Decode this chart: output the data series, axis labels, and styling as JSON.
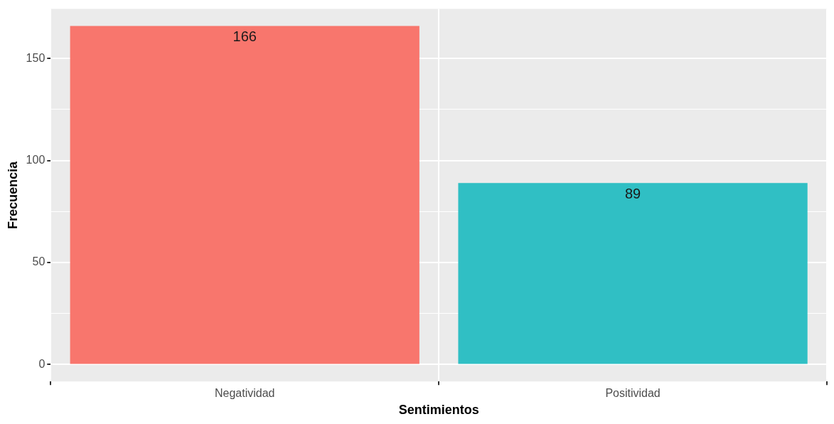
{
  "chart_data": {
    "type": "bar",
    "xlabel": "Sentimientos",
    "ylabel": "Frecuencia",
    "categories": [
      "Negatividad",
      "Positividad"
    ],
    "values": [
      166,
      89
    ],
    "colors": [
      "#f8766d",
      "#30bfc4"
    ],
    "ylim": [
      -8.3,
      174.3
    ],
    "yticks": [
      0,
      {
        "value": 25,
        "label": null
      },
      50,
      {
        "value": 75,
        "label": null
      },
      100,
      {
        "value": 125,
        "label": null
      },
      150
    ],
    "grid": true,
    "legend": false,
    "data_labels": true
  }
}
